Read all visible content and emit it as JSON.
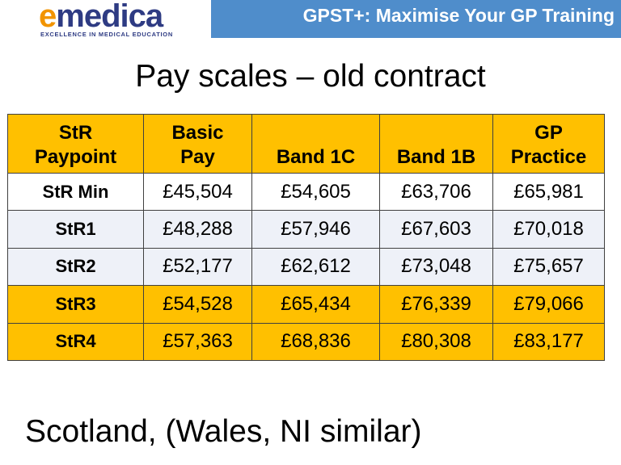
{
  "header": {
    "logo_e": "e",
    "logo_rest": "medica",
    "logo_tagline": "EXCELLENCE IN MEDICAL EDUCATION",
    "banner": "GPST+: Maximise Your GP Training"
  },
  "title": "Pay scales – old contract",
  "table": {
    "headers": [
      "StR\nPaypoint",
      "Basic\nPay",
      "Band 1C",
      "Band 1B",
      "GP\nPractice"
    ],
    "rows": [
      {
        "label": "StR Min",
        "values": [
          "£45,504",
          "£54,605",
          "£63,706",
          "£65,981"
        ]
      },
      {
        "label": "StR1",
        "values": [
          "£48,288",
          "£57,946",
          "£67,603",
          "£70,018"
        ]
      },
      {
        "label": "StR2",
        "values": [
          "£52,177",
          "£62,612",
          "£73,048",
          "£75,657"
        ]
      },
      {
        "label": "StR3",
        "values": [
          "£54,528",
          "£65,434",
          "£76,339",
          "£79,066"
        ]
      },
      {
        "label": "StR4",
        "values": [
          "£57,363",
          "£68,836",
          "£80,308",
          "£83,177"
        ]
      }
    ]
  },
  "footer": "Scotland, (Wales, NI similar)",
  "colors": {
    "header_gold": "#ffc000",
    "banner_blue": "#4f8dcb",
    "logo_orange": "#f29400",
    "logo_navy": "#2e3b83"
  }
}
